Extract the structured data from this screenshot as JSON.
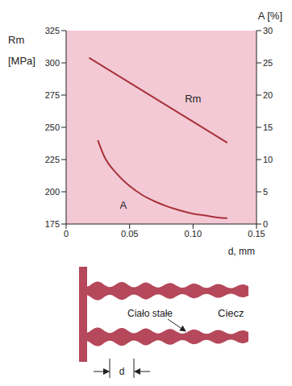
{
  "chart_data": {
    "type": "line",
    "xlabel": "d, mm",
    "ylabel": "Rm [MPa]",
    "y2label": "A [%]",
    "grid": false,
    "xlim": [
      0,
      0.15
    ],
    "xticks": [
      0,
      0.05,
      {
        "value": 0.1,
        "label": "0.10"
      },
      0.15
    ],
    "ylim": [
      175,
      325
    ],
    "yticks": [
      175,
      200,
      225,
      250,
      275,
      300,
      325
    ],
    "y2lim": [
      0,
      30
    ],
    "y2ticks": [
      0,
      5,
      10,
      15,
      20,
      25,
      30
    ],
    "series": [
      {
        "name": "Rm",
        "color": "#a8323a",
        "x": [
          0.018,
          0.127
        ],
        "values": [
          304,
          238
        ]
      },
      {
        "name": "A",
        "color": "#a8323a",
        "axis": "y2",
        "x": [
          0.025,
          0.03,
          0.04,
          0.05,
          0.06,
          0.07,
          0.08,
          0.09,
          0.1,
          0.11,
          0.12,
          0.127
        ],
        "values": [
          13,
          10.5,
          7.8,
          5.9,
          4.5,
          3.5,
          2.7,
          2.1,
          1.6,
          1.3,
          1.0,
          0.9
        ]
      }
    ],
    "annotations": [
      {
        "text": "Rm",
        "x": 0.1,
        "y": 272
      },
      {
        "text": "A",
        "x": 0.045,
        "y": 3,
        "axis": "y2"
      }
    ]
  },
  "diagram": {
    "labels": {
      "solid": "Ciało stałe",
      "liquid": "Ciecz",
      "spacing": "d"
    }
  }
}
